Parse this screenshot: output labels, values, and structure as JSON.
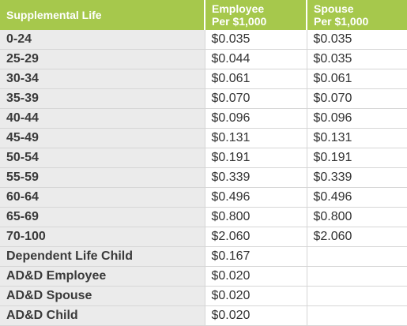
{
  "table": {
    "headers": [
      "Supplemental Life",
      "Employee\nPer $1,000",
      "Spouse\nPer $1,000"
    ],
    "header_lines": {
      "col1": "Supplemental Life",
      "col2_line1": "Employee",
      "col2_line2": "Per $1,000",
      "col3_line1": "Spouse",
      "col3_line2": "Per $1,000"
    },
    "rows": [
      [
        "0-24",
        "$0.035",
        "$0.035"
      ],
      [
        "25-29",
        "$0.044",
        "$0.035"
      ],
      [
        "30-34",
        "$0.061",
        "$0.061"
      ],
      [
        "35-39",
        "$0.070",
        "$0.070"
      ],
      [
        "40-44",
        "$0.096",
        "$0.096"
      ],
      [
        "45-49",
        "$0.131",
        "$0.131"
      ],
      [
        "50-54",
        "$0.191",
        "$0.191"
      ],
      [
        "55-59",
        "$0.339",
        "$0.339"
      ],
      [
        "60-64",
        "$0.496",
        "$0.496"
      ],
      [
        "65-69",
        "$0.800",
        "$0.800"
      ],
      [
        "70-100",
        "$2.060",
        "$2.060"
      ],
      [
        "Dependent Life Child",
        "$0.167",
        ""
      ],
      [
        "AD&D Employee",
        "$0.020",
        ""
      ],
      [
        "AD&D Spouse",
        "$0.020",
        ""
      ],
      [
        "AD&D Child",
        "$0.020",
        ""
      ]
    ]
  },
  "colors": {
    "header_bg": "#a6c84c",
    "label_bg": "#ebebeb"
  }
}
